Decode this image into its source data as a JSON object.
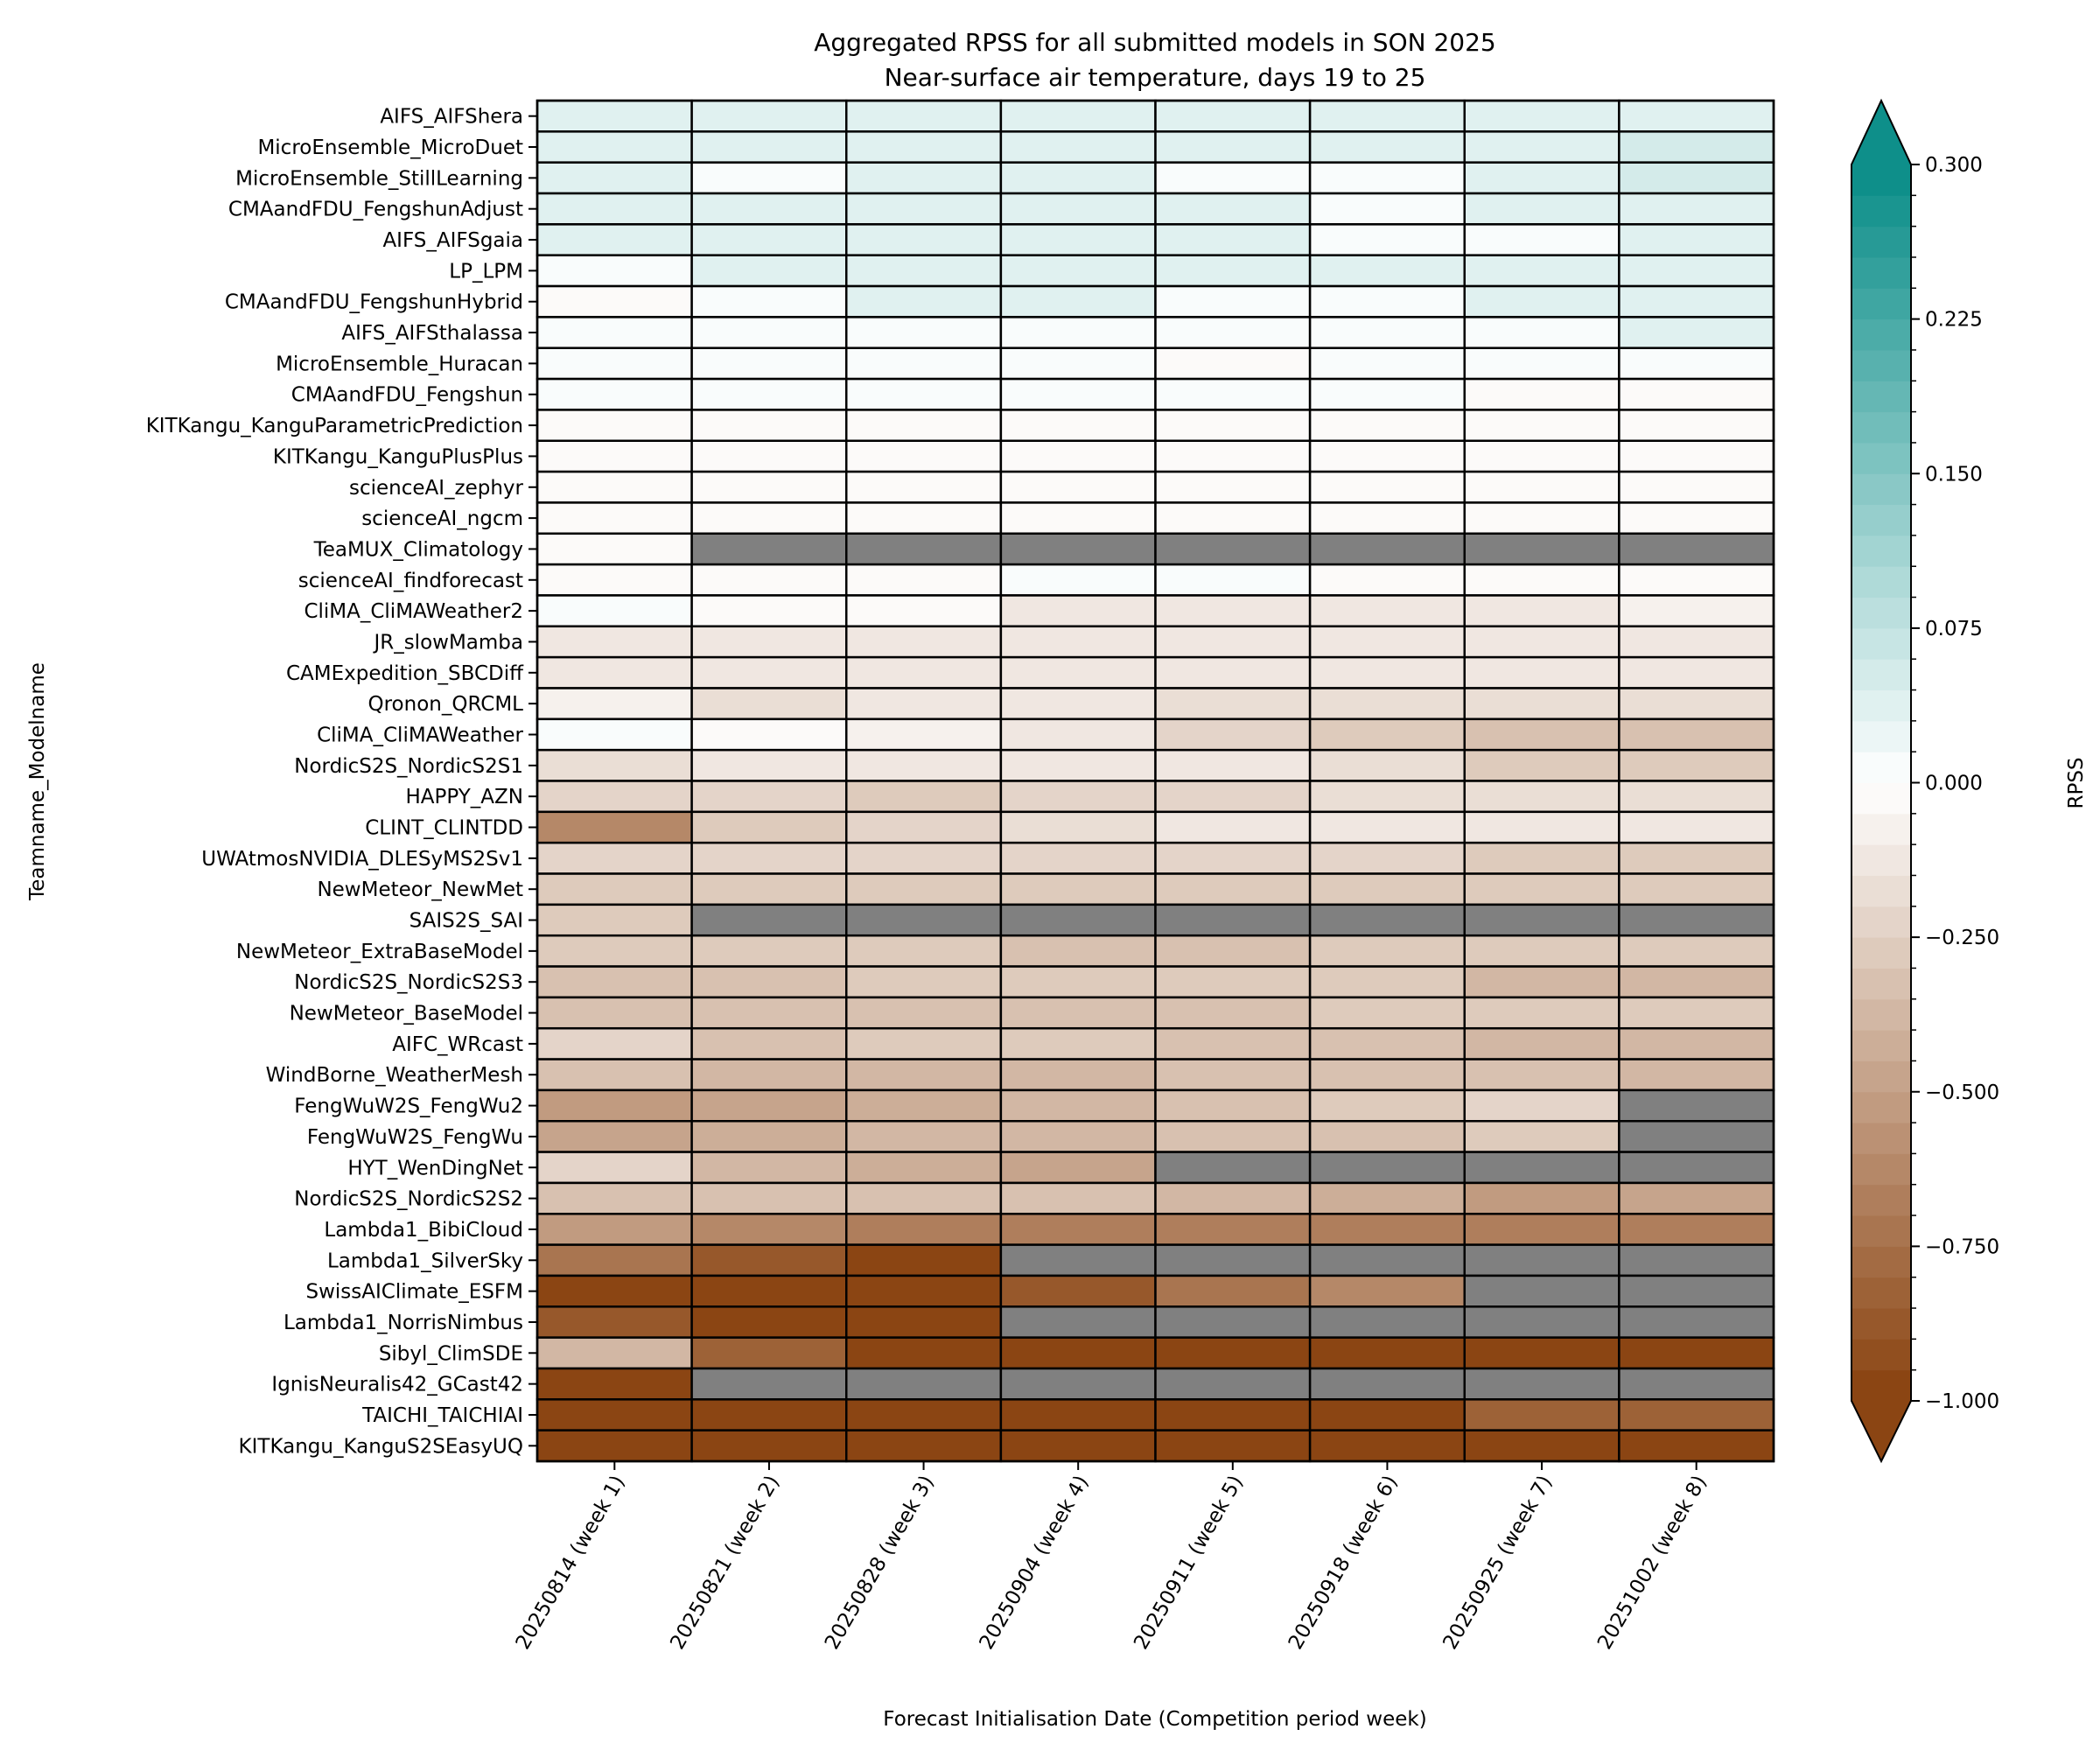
{
  "chart_data": {
    "type": "heatmap",
    "title": "Aggregated RPSS for all submitted models in SON 2025",
    "subtitle": "Near-surface air temperature, days 19 to 25",
    "xlabel": "Forecast Initialisation Date (Competition period week)",
    "ylabel": "Teamname_Modelname",
    "colorbar_label": "RPSS",
    "colorbar_range": [
      -1.0,
      0.3
    ],
    "colorbar_ticks": [
      "0.300",
      "0.225",
      "0.150",
      "0.075",
      "0.000",
      "−0.250",
      "−0.500",
      "−0.750",
      "−1.000"
    ],
    "colorbar_tick_values": [
      0.3,
      0.225,
      0.15,
      0.075,
      0.0,
      -0.25,
      -0.5,
      -0.75,
      -1.0
    ],
    "colorbar_extend": "both",
    "colors": {
      "low": "#8b4513",
      "mid": "#ffffff",
      "high": "#0e8f8a",
      "missing": "#808080"
    },
    "columns": [
      "20250814 (week 1)",
      "20250821 (week 2)",
      "20250828 (week 3)",
      "20250904 (week 4)",
      "20250911 (week 5)",
      "20250918 (week 6)",
      "20250925 (week 7)",
      "20251002 (week 8)"
    ],
    "rows": [
      "AIFS_AIFShera",
      "MicroEnsemble_MicroDuet",
      "MicroEnsemble_StillLearning",
      "CMAandFDU_FengshunAdjust",
      "AIFS_AIFSgaia",
      "LP_LPM",
      "CMAandFDU_FengshunHybrid",
      "AIFS_AIFSthalassa",
      "MicroEnsemble_Huracan",
      "CMAandFDU_Fengshun",
      "KITKangu_KanguParametricPrediction",
      "KITKangu_KanguPlusPlus",
      "scienceAI_zephyr",
      "scienceAI_ngcm",
      "TeaMUX_Climatology",
      "scienceAI_findforecast",
      "CliMA_CliMAWeather2",
      "JR_slowMamba",
      "CAMExpedition_SBCDiff",
      "Qronon_QRCML",
      "CliMA_CliMAWeather",
      "NordicS2S_NordicS2S1",
      "HAPPY_AZN",
      "CLINT_CLINTDD",
      "UWAtmosNVIDIA_DLESyMS2Sv1",
      "NewMeteor_NewMet",
      "SAIS2S_SAI",
      "NewMeteor_ExtraBaseModel",
      "NordicS2S_NordicS2S3",
      "NewMeteor_BaseModel",
      "AIFC_WRcast",
      "WindBorne_WeatherMesh",
      "FengWuW2S_FengWu2",
      "FengWuW2S_FengWu",
      "HYT_WenDingNet",
      "NordicS2S_NordicS2S2",
      "Lambda1_BibiCloud",
      "Lambda1_SilverSky",
      "SwissAIClimate_ESFM",
      "Lambda1_NorrisNimbus",
      "Sibyl_ClimSDE",
      "IgnisNeuralis42_GCast42",
      "TAICHI_TAICHIAI",
      "KITKangu_KanguS2SEasyUQ"
    ],
    "values": [
      [
        0.04,
        0.03,
        0.03,
        0.03,
        0.03,
        0.03,
        0.03,
        0.03
      ],
      [
        0.03,
        0.03,
        0.03,
        0.03,
        0.03,
        0.03,
        0.03,
        0.045
      ],
      [
        0.03,
        0.01,
        0.03,
        0.03,
        0.01,
        0.01,
        0.03,
        0.045
      ],
      [
        0.03,
        0.03,
        0.03,
        0.03,
        0.03,
        0.01,
        0.03,
        0.03
      ],
      [
        0.03,
        0.03,
        0.03,
        0.03,
        0.03,
        0.01,
        0.01,
        0.03
      ],
      [
        0.01,
        0.03,
        0.03,
        0.03,
        0.03,
        0.03,
        0.03,
        0.03
      ],
      [
        -0.02,
        0.01,
        0.03,
        0.03,
        0.01,
        0.01,
        0.03,
        0.03
      ],
      [
        0.01,
        0.0,
        0.01,
        0.01,
        0.01,
        0.01,
        0.01,
        0.03
      ],
      [
        0.01,
        0.0,
        0.0,
        0.0,
        -0.02,
        0.0,
        0.0,
        0.01
      ],
      [
        0.0,
        0.0,
        0.01,
        0.01,
        0.0,
        0.0,
        -0.02,
        -0.02
      ],
      [
        -0.03,
        -0.03,
        -0.03,
        -0.03,
        -0.03,
        -0.03,
        -0.03,
        -0.03
      ],
      [
        -0.03,
        -0.03,
        -0.03,
        -0.03,
        -0.03,
        -0.03,
        -0.03,
        -0.03
      ],
      [
        -0.03,
        -0.03,
        -0.03,
        -0.03,
        -0.03,
        -0.03,
        -0.03,
        -0.03
      ],
      [
        -0.03,
        -0.03,
        -0.03,
        -0.03,
        -0.03,
        -0.03,
        -0.03,
        -0.03
      ],
      [
        -0.03,
        null,
        null,
        null,
        null,
        null,
        null,
        null
      ],
      [
        -0.03,
        -0.03,
        -0.03,
        0.0,
        0.0,
        -0.03,
        -0.03,
        -0.03
      ],
      [
        0.01,
        -0.03,
        -0.03,
        -0.12,
        -0.12,
        -0.12,
        -0.12,
        -0.08
      ],
      [
        -0.12,
        -0.15,
        -0.12,
        -0.12,
        -0.12,
        -0.12,
        -0.12,
        -0.12
      ],
      [
        -0.12,
        -0.15,
        -0.15,
        -0.15,
        -0.15,
        -0.15,
        -0.15,
        -0.12
      ],
      [
        -0.07,
        -0.2,
        -0.15,
        -0.15,
        -0.2,
        -0.2,
        -0.2,
        -0.2
      ],
      [
        0.01,
        -0.03,
        -0.07,
        -0.15,
        -0.25,
        -0.3,
        -0.35,
        -0.35
      ],
      [
        -0.18,
        -0.15,
        -0.12,
        -0.15,
        -0.15,
        -0.2,
        -0.3,
        -0.27
      ],
      [
        -0.22,
        -0.22,
        -0.27,
        -0.22,
        -0.22,
        -0.18,
        -0.18,
        -0.18
      ],
      [
        -0.62,
        -0.3,
        -0.22,
        -0.18,
        -0.15,
        -0.15,
        -0.12,
        -0.12
      ],
      [
        -0.22,
        -0.22,
        -0.22,
        -0.22,
        -0.22,
        -0.22,
        -0.3,
        -0.3
      ],
      [
        -0.3,
        -0.3,
        -0.3,
        -0.3,
        -0.3,
        -0.27,
        -0.27,
        -0.27
      ],
      [
        -0.3,
        null,
        null,
        null,
        null,
        null,
        null,
        null
      ],
      [
        -0.3,
        -0.3,
        -0.3,
        -0.35,
        -0.35,
        -0.3,
        -0.3,
        -0.27
      ],
      [
        -0.35,
        -0.35,
        -0.3,
        -0.27,
        -0.27,
        -0.3,
        -0.4,
        -0.4
      ],
      [
        -0.35,
        -0.35,
        -0.35,
        -0.35,
        -0.35,
        -0.3,
        -0.3,
        -0.3
      ],
      [
        -0.25,
        -0.35,
        -0.3,
        -0.3,
        -0.35,
        -0.35,
        -0.4,
        -0.4
      ],
      [
        -0.35,
        -0.4,
        -0.4,
        -0.4,
        -0.35,
        -0.35,
        -0.35,
        -0.4
      ],
      [
        -0.55,
        -0.5,
        -0.45,
        -0.4,
        -0.35,
        -0.3,
        -0.25,
        null
      ],
      [
        -0.5,
        -0.45,
        -0.4,
        -0.4,
        -0.35,
        -0.35,
        -0.3,
        null
      ],
      [
        -0.25,
        -0.4,
        -0.45,
        -0.5,
        null,
        null,
        null,
        null
      ],
      [
        -0.35,
        -0.35,
        -0.35,
        -0.35,
        -0.4,
        -0.45,
        -0.55,
        -0.5
      ],
      [
        -0.55,
        -0.65,
        -0.7,
        -0.7,
        -0.7,
        -0.7,
        -0.7,
        -0.7
      ],
      [
        -0.75,
        -0.9,
        -1.0,
        null,
        null,
        null,
        null,
        null
      ],
      [
        -1.0,
        -1.0,
        -1.0,
        -0.9,
        -0.75,
        -0.65,
        null,
        null
      ],
      [
        -0.9,
        -1.0,
        -1.0,
        null,
        null,
        null,
        null,
        null
      ],
      [
        -0.4,
        -0.85,
        -1.0,
        -1.0,
        -1.0,
        -1.0,
        -1.0,
        -1.0
      ],
      [
        -1.0,
        null,
        null,
        null,
        null,
        null,
        null,
        null
      ],
      [
        -1.0,
        -1.0,
        -1.0,
        -1.0,
        -1.0,
        -1.0,
        -0.85,
        -0.85
      ],
      [
        -1.0,
        -1.0,
        -1.0,
        -1.0,
        -1.0,
        -1.0,
        -1.0,
        -1.0
      ]
    ]
  }
}
